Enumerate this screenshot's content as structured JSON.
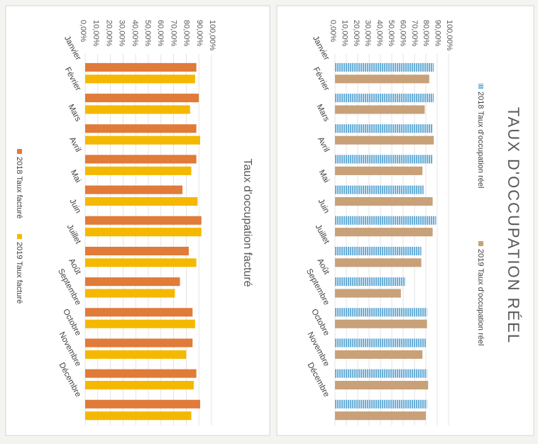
{
  "chart_data": [
    {
      "type": "bar",
      "title": "TAUX D'OCCUPATION RÉEL",
      "xlabel": "",
      "ylabel": "",
      "ylim": [
        0,
        100
      ],
      "tick_labels": [
        "0,00%",
        "10,00%",
        "20,00%",
        "30,00%",
        "40,00%",
        "50,00%",
        "60,00%",
        "70,00%",
        "80,00%",
        "90,00%",
        "100,00%"
      ],
      "categories": [
        "Janvier",
        "Février",
        "Mars",
        "Avril",
        "Mai",
        "Juin",
        "Juillet",
        "Août",
        "Septembre",
        "Octobre",
        "Novembre",
        "Décembre"
      ],
      "series": [
        {
          "name": "2018 Taux d'occupation réel",
          "color": "#6baed6",
          "pattern": true,
          "values": [
            87,
            87,
            86,
            86,
            78,
            89,
            76,
            62,
            81,
            80,
            81,
            81
          ]
        },
        {
          "name": "2019 Taux d'occupation réel",
          "color": "#c8a179",
          "pattern": false,
          "values": [
            83,
            79,
            87,
            77,
            86,
            86,
            76,
            58,
            81,
            77,
            82,
            80
          ]
        }
      ],
      "legend": "top",
      "grid": true
    },
    {
      "type": "bar",
      "title": "Taux d'occupation facturé",
      "xlabel": "",
      "ylabel": "",
      "ylim": [
        0,
        100
      ],
      "tick_labels": [
        "0,00%",
        "10,00%",
        "20,00%",
        "30,00%",
        "40,00%",
        "50,00%",
        "60,00%",
        "70,00%",
        "80,00%",
        "90,00%",
        "100,00%"
      ],
      "categories": [
        "Janvier",
        "Février",
        "Mars",
        "Avril",
        "Mai",
        "Juin",
        "Juillet",
        "Août",
        "Septembre",
        "Octobre",
        "Novembre",
        "Décembre"
      ],
      "series": [
        {
          "name": "2018 Taux facturé",
          "color": "#e07b39",
          "pattern": false,
          "values": [
            88,
            90,
            88,
            88,
            77,
            92,
            82,
            75,
            85,
            85,
            88,
            91
          ]
        },
        {
          "name": "2019 Taux facturé",
          "color": "#f5b800",
          "pattern": false,
          "values": [
            87,
            83,
            91,
            84,
            89,
            92,
            88,
            71,
            87,
            80,
            86,
            84
          ]
        }
      ],
      "legend": "bottom",
      "grid": true
    }
  ]
}
